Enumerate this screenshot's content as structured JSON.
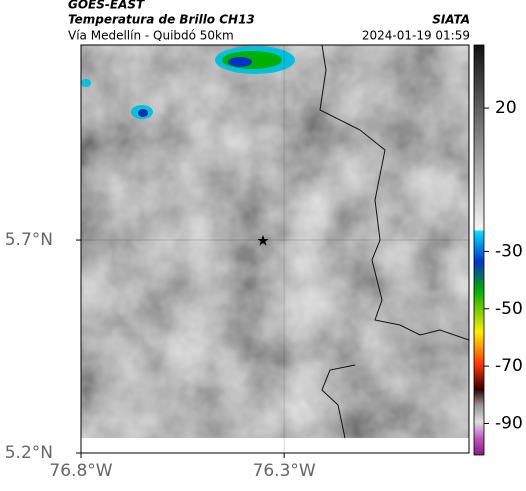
{
  "header": {
    "title": "GOES-EAST",
    "subtitle": "Temperatura de Brillo CH13",
    "route": "Vía Medellín - Quibdó 50km",
    "source": "SIATA",
    "timestamp": "2024-01-19 01:59"
  },
  "map": {
    "xlim": [
      -76.8,
      -75.845
    ],
    "ylim": [
      5.2,
      6.158
    ],
    "xticks": [
      {
        "value": -76.8,
        "label": "76.8°W"
      },
      {
        "value": -76.3,
        "label": "76.3°W"
      }
    ],
    "yticks": [
      {
        "value": 5.2,
        "label": "5.2°N"
      },
      {
        "value": 5.7,
        "label": "5.7°N"
      }
    ]
  },
  "colorbar": {
    "lim": [
      -101,
      42
    ],
    "ticks": [
      20,
      -30,
      -50,
      -70,
      -90
    ]
  }
}
